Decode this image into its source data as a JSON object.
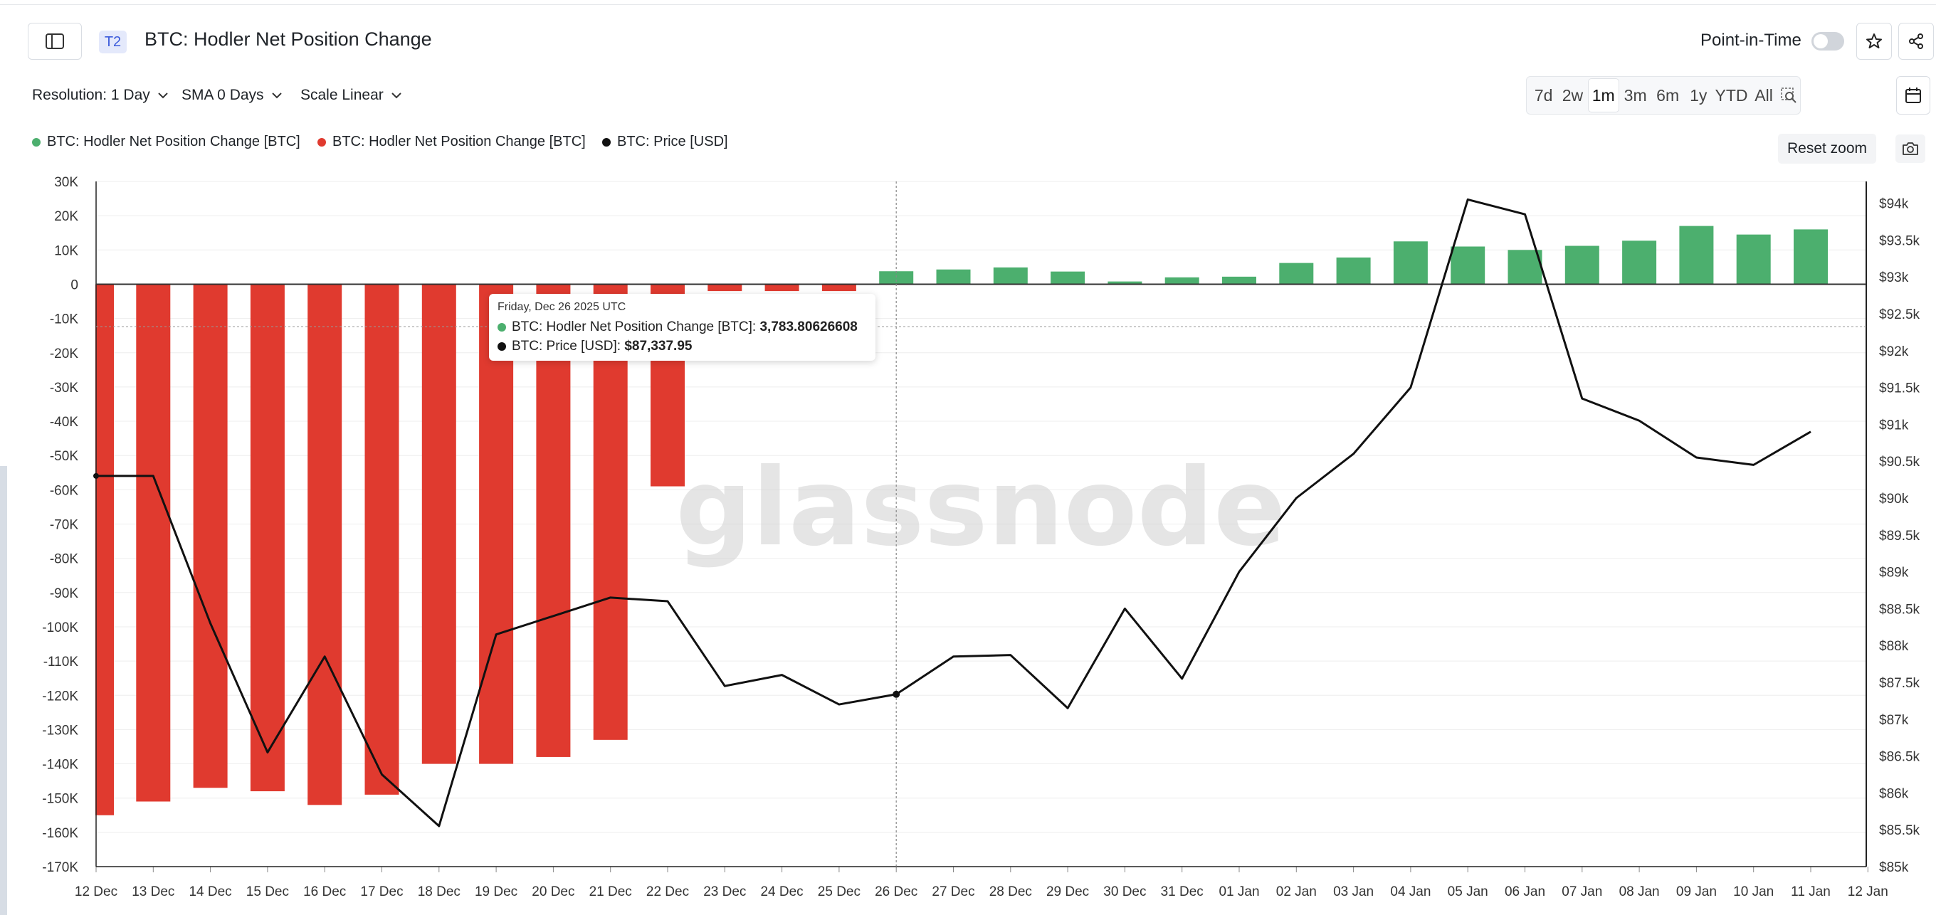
{
  "header": {
    "badge": "T2",
    "title": "BTC: Hodler Net Position Change",
    "point_in_time_label": "Point-in-Time"
  },
  "toolbar": {
    "resolution": "Resolution: 1 Day",
    "sma": "SMA 0 Days",
    "scale": "Scale Linear",
    "ranges": [
      "7d",
      "2w",
      "1m",
      "3m",
      "6m",
      "1y",
      "YTD",
      "All"
    ],
    "active_range": "1m",
    "reset_zoom": "Reset zoom"
  },
  "legend": [
    {
      "label": "BTC: Hodler Net Position Change [BTC]",
      "color": "#4caf6e"
    },
    {
      "label": "BTC: Hodler Net Position Change [BTC]",
      "color": "#e03a2f"
    },
    {
      "label": "BTC: Price [USD]",
      "color": "#111111"
    }
  ],
  "tooltip": {
    "date": "Friday, Dec 26 2025 UTC",
    "row1_label": "BTC: Hodler Net Position Change [BTC]: ",
    "row1_value": "3,783.80626608",
    "row2_label": "BTC: Price [USD]: ",
    "row2_value": "$87,337.95"
  },
  "watermark": "glassnode",
  "chart_data": {
    "type": "bar",
    "x_tick_labels": [
      "12 Dec",
      "13 Dec",
      "14 Dec",
      "15 Dec",
      "16 Dec",
      "17 Dec",
      "18 Dec",
      "19 Dec",
      "20 Dec",
      "21 Dec",
      "22 Dec",
      "23 Dec",
      "24 Dec",
      "25 Dec",
      "26 Dec",
      "27 Dec",
      "28 Dec",
      "29 Dec",
      "30 Dec",
      "31 Dec",
      "01 Jan",
      "02 Jan",
      "03 Jan",
      "04 Jan",
      "05 Jan",
      "06 Jan",
      "07 Jan",
      "08 Jan",
      "09 Jan",
      "10 Jan",
      "11 Jan",
      "12 Jan"
    ],
    "categories": [
      "12 Dec",
      "13 Dec",
      "14 Dec",
      "15 Dec",
      "16 Dec",
      "17 Dec",
      "18 Dec",
      "19 Dec",
      "20 Dec",
      "21 Dec",
      "22 Dec",
      "23 Dec",
      "24 Dec",
      "25 Dec",
      "26 Dec",
      "27 Dec",
      "28 Dec",
      "29 Dec",
      "30 Dec",
      "31 Dec",
      "01 Jan",
      "02 Jan",
      "03 Jan",
      "04 Jan",
      "05 Jan",
      "06 Jan",
      "07 Jan",
      "08 Jan",
      "09 Jan",
      "10 Jan",
      "11 Jan"
    ],
    "series": [
      {
        "name": "BTC: Hodler Net Position Change [BTC]",
        "type": "bar",
        "axis": "left",
        "values": [
          -155000,
          -151000,
          -147000,
          -148000,
          -152000,
          -149000,
          -140000,
          -140000,
          -138000,
          -133000,
          -59000,
          -2000,
          -2000,
          -2000,
          3783.8,
          4300,
          4900,
          3700,
          800,
          2000,
          2200,
          6200,
          7800,
          12500,
          11000,
          10000,
          11200,
          12700,
          17000,
          14500,
          16000
        ]
      },
      {
        "name": "BTC: Price [USD]",
        "type": "line",
        "axis": "right",
        "values": [
          90300,
          90300,
          88300,
          86550,
          87850,
          86250,
          85550,
          88150,
          88400,
          88650,
          88600,
          87450,
          87600,
          87200,
          87337.95,
          87850,
          87870,
          87150,
          88500,
          87550,
          89000,
          90000,
          90600,
          91500,
          94050,
          93850,
          91350,
          91050,
          90550,
          90450,
          90900
        ]
      }
    ],
    "left_axis": {
      "ticks": [
        "30K",
        "20K",
        "10K",
        "0",
        "-10K",
        "-20K",
        "-30K",
        "-40K",
        "-50K",
        "-60K",
        "-70K",
        "-80K",
        "-90K",
        "-100K",
        "-110K",
        "-120K",
        "-130K",
        "-140K",
        "-150K",
        "-160K",
        "-170K"
      ],
      "range": [
        -170000,
        30000
      ]
    },
    "right_axis": {
      "ticks": [
        "$94k",
        "$93.5k",
        "$93k",
        "$92.5k",
        "$92k",
        "$91.5k",
        "$91k",
        "$90.5k",
        "$90k",
        "$89.5k",
        "$89k",
        "$88.5k",
        "$88k",
        "$87.5k",
        "$87k",
        "$86.5k",
        "$86k",
        "$85.5k",
        "$85k"
      ],
      "range": [
        85000,
        94200
      ]
    },
    "positive_color": "#4caf6e",
    "negative_color": "#e03a2f",
    "line_color": "#111111",
    "grid": true,
    "highlight": "26 Dec"
  }
}
